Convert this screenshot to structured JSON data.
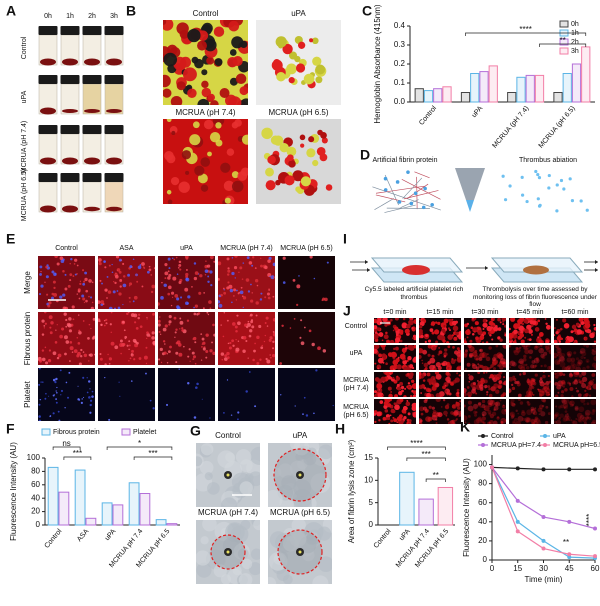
{
  "panels": {
    "A": {
      "label": "A",
      "columns": [
        "0h",
        "1h",
        "2h",
        "3h"
      ],
      "rows": [
        "Control",
        "uPA",
        "MCRUA (pH 7.4)",
        "MCRUA (pH 6.5)"
      ]
    },
    "B": {
      "label": "B",
      "images": [
        "Control",
        "uPA",
        "MCRUA (pH 7.4)",
        "MCRUA (pH 6.5)"
      ]
    },
    "D": {
      "label": "D",
      "captions": [
        "Artificial fibrin protein",
        "Thrombus abiation"
      ]
    },
    "E": {
      "label": "E",
      "columns": [
        "Control",
        "ASA",
        "uPA",
        "MCRUA (pH 7.4)",
        "MCRUA (pH 6.5)"
      ],
      "rows": [
        "Merge",
        "Fibrous protein",
        "Platelet"
      ]
    },
    "G": {
      "label": "G",
      "images": [
        "Control",
        "uPA",
        "MCRUA (pH 7.4)",
        "MCRUA (pH 6.5)"
      ]
    },
    "I": {
      "label": "I",
      "captions": [
        "Cy5.5 labeled artificial platelet rich thrombus",
        "Thrombolysis over time assessed by monitoring loss of fibrin fluorescence under flow"
      ]
    },
    "J": {
      "label": "J",
      "columns": [
        "t=0 min",
        "t=15 min",
        "t=30 min",
        "t=45 min",
        "t=60 min"
      ],
      "rows": [
        "Control",
        "uPA",
        "MCRUA (pH 7.4)",
        "MCRUA (pH 6.5)"
      ]
    }
  },
  "chart_data": [
    {
      "type": "bar",
      "panel_label": "C",
      "y_label": "Hemoglobin Absorbance (415nm)",
      "categories": [
        "Control",
        "uPA",
        "MCRUA (pH 7.4)",
        "MCRUA (pH 6.5)"
      ],
      "series": [
        {
          "name": "0h",
          "color": "#444444",
          "values": [
            0.07,
            0.05,
            0.05,
            0.05
          ]
        },
        {
          "name": "1h",
          "color": "#5bb5e6",
          "values": [
            0.06,
            0.15,
            0.13,
            0.15
          ]
        },
        {
          "name": "2h",
          "color": "#b46fd8",
          "values": [
            0.07,
            0.16,
            0.14,
            0.2
          ]
        },
        {
          "name": "3h",
          "color": "#f27ea6",
          "values": [
            0.08,
            0.19,
            0.14,
            0.29
          ]
        }
      ],
      "ylim": [
        0,
        0.4
      ],
      "yticks": [
        {
          "value": 0,
          "label": "0.0"
        },
        0.1,
        0.2,
        0.3,
        0.4
      ],
      "annotations": [
        "****",
        "**"
      ]
    },
    {
      "type": "bar",
      "panel_label": "F",
      "y_label": "Fluorescence Intensity (AU)",
      "categories": [
        "Control",
        "ASA",
        "uPA",
        "MCRUA pH 7.4",
        "MCRUA pH 6.5"
      ],
      "series": [
        {
          "name": "Fibrous protein",
          "color": "#5bb5e6",
          "values": [
            86,
            82,
            33,
            63,
            8
          ]
        },
        {
          "name": "Platelet",
          "color": "#b46fd8",
          "values": [
            49,
            10,
            30,
            47,
            2
          ]
        }
      ],
      "ylim": [
        0,
        100
      ],
      "yticks": [
        0,
        20,
        40,
        60,
        80,
        100
      ],
      "annotations": [
        "ns",
        "***",
        "*",
        "***"
      ]
    },
    {
      "type": "bar",
      "panel_label": "H",
      "y_label": "Area of fibrin lysis zone (cm²)",
      "categories": [
        "Control",
        "uPA",
        "MCRUA pH 7.4",
        "MCRUA pH 6.5"
      ],
      "values": [
        0,
        11.8,
        5.8,
        8.4
      ],
      "colors": [
        "#444444",
        "#5bb5e6",
        "#b46fd8",
        "#f27ea6"
      ],
      "ylim": [
        0,
        15
      ],
      "yticks": [
        0,
        5,
        10,
        15
      ],
      "annotations": [
        "****",
        "***",
        "**"
      ]
    },
    {
      "type": "line",
      "panel_label": "K",
      "x_label": "Time (min)",
      "y_label": "Fluorescence Intensity (AU)",
      "x": [
        0,
        15,
        30,
        45,
        60
      ],
      "series": [
        {
          "name": "Control",
          "color": "#222222",
          "values": [
            97,
            96,
            95,
            95,
            95
          ]
        },
        {
          "name": "uPA",
          "color": "#5bb5e6",
          "values": [
            97,
            40,
            20,
            3,
            2
          ]
        },
        {
          "name": "MCRUA pH=7.4",
          "color": "#b46fd8",
          "values": [
            97,
            62,
            45,
            40,
            33
          ]
        },
        {
          "name": "MCRUA pH=6.5",
          "color": "#f27ea6",
          "values": [
            97,
            30,
            12,
            6,
            4
          ]
        }
      ],
      "xlim": [
        0,
        60
      ],
      "xticks": [
        0,
        15,
        30,
        45,
        60
      ],
      "ylim": [
        0,
        110
      ],
      "yticks": [
        0,
        20,
        40,
        60,
        80,
        100
      ],
      "annotations": [
        "**",
        "****"
      ]
    }
  ]
}
